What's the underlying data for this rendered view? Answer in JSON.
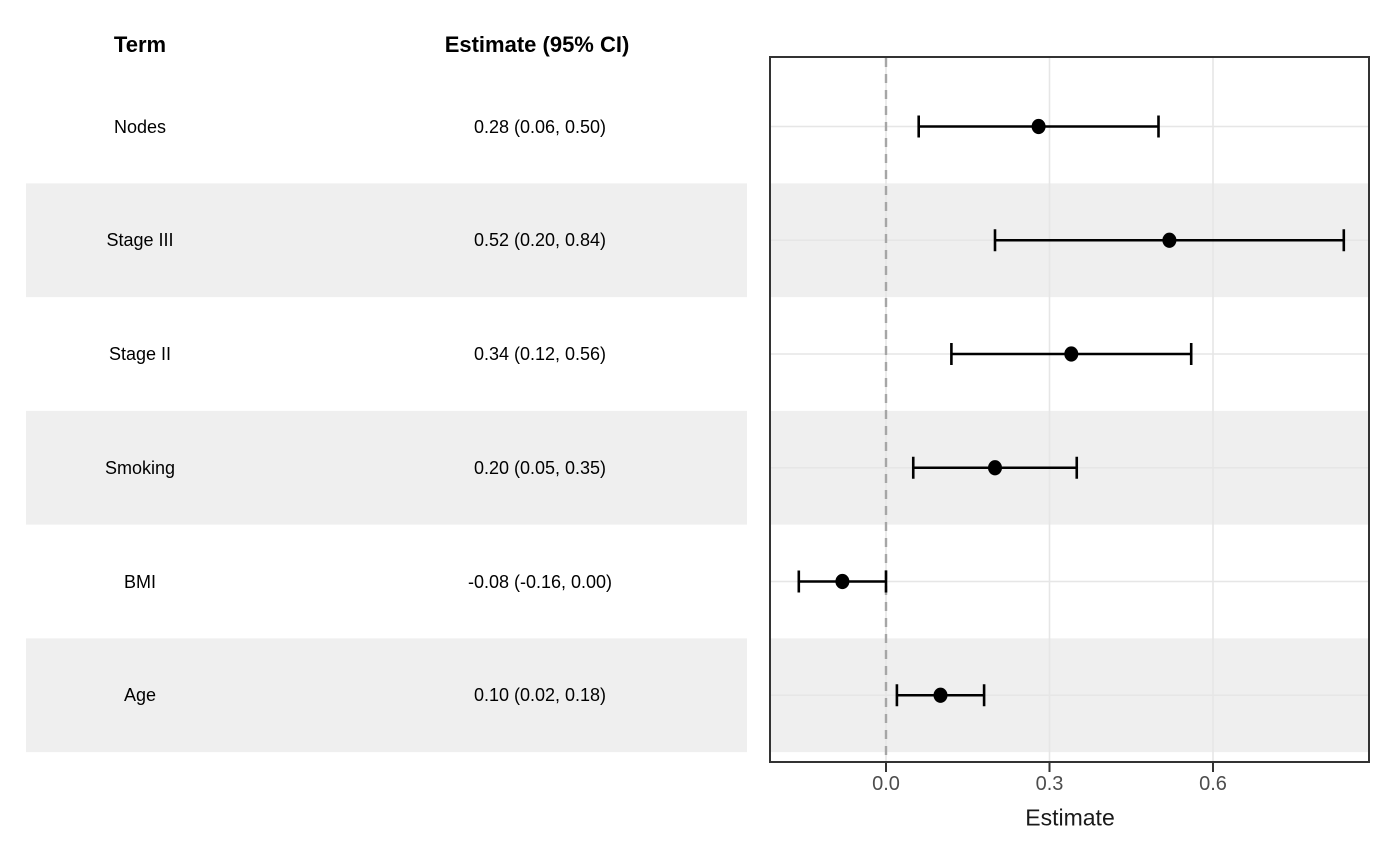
{
  "table": {
    "term_header": "Term",
    "estimate_header": "Estimate (95% CI)"
  },
  "chart_data": {
    "type": "scatter",
    "subtype": "forest-plot",
    "title": "",
    "xlabel": "Estimate",
    "ylabel": "",
    "xlim": [
      -0.21,
      0.89
    ],
    "x_ticks": [
      0.0,
      0.3,
      0.6
    ],
    "x_tick_labels": [
      "0.0",
      "0.3",
      "0.6"
    ],
    "grid": true,
    "legend": false,
    "reference_line": {
      "x": 0.0,
      "style": "dashed"
    },
    "rows": [
      {
        "term": "Nodes",
        "estimate": 0.28,
        "ci_low": 0.06,
        "ci_high": 0.5,
        "label": "0.28 (0.06, 0.50)",
        "striped": false
      },
      {
        "term": "Stage III",
        "estimate": 0.52,
        "ci_low": 0.2,
        "ci_high": 0.84,
        "label": "0.52 (0.20, 0.84)",
        "striped": true
      },
      {
        "term": "Stage II",
        "estimate": 0.34,
        "ci_low": 0.12,
        "ci_high": 0.56,
        "label": "0.34 (0.12, 0.56)",
        "striped": false
      },
      {
        "term": "Smoking",
        "estimate": 0.2,
        "ci_low": 0.05,
        "ci_high": 0.35,
        "label": "0.20 (0.05, 0.35)",
        "striped": true
      },
      {
        "term": "BMI",
        "estimate": -0.08,
        "ci_low": -0.16,
        "ci_high": 0.0,
        "label": "-0.08 (-0.16, 0.00)",
        "striped": false
      },
      {
        "term": "Age",
        "estimate": 0.1,
        "ci_low": 0.02,
        "ci_high": 0.18,
        "label": "0.10 (0.02, 0.18)",
        "striped": true
      }
    ],
    "colors": {
      "stripe": "#EFEFEF",
      "grid": "#E6E6E6",
      "panel_border": "#333333",
      "point": "#000000",
      "error_bar": "#000000",
      "reference_line": "#A6A6A6",
      "tick_mark": "#333333",
      "tick_label": "#4D4D4D",
      "header_text": "#000000",
      "background": "#FFFFFF"
    }
  }
}
